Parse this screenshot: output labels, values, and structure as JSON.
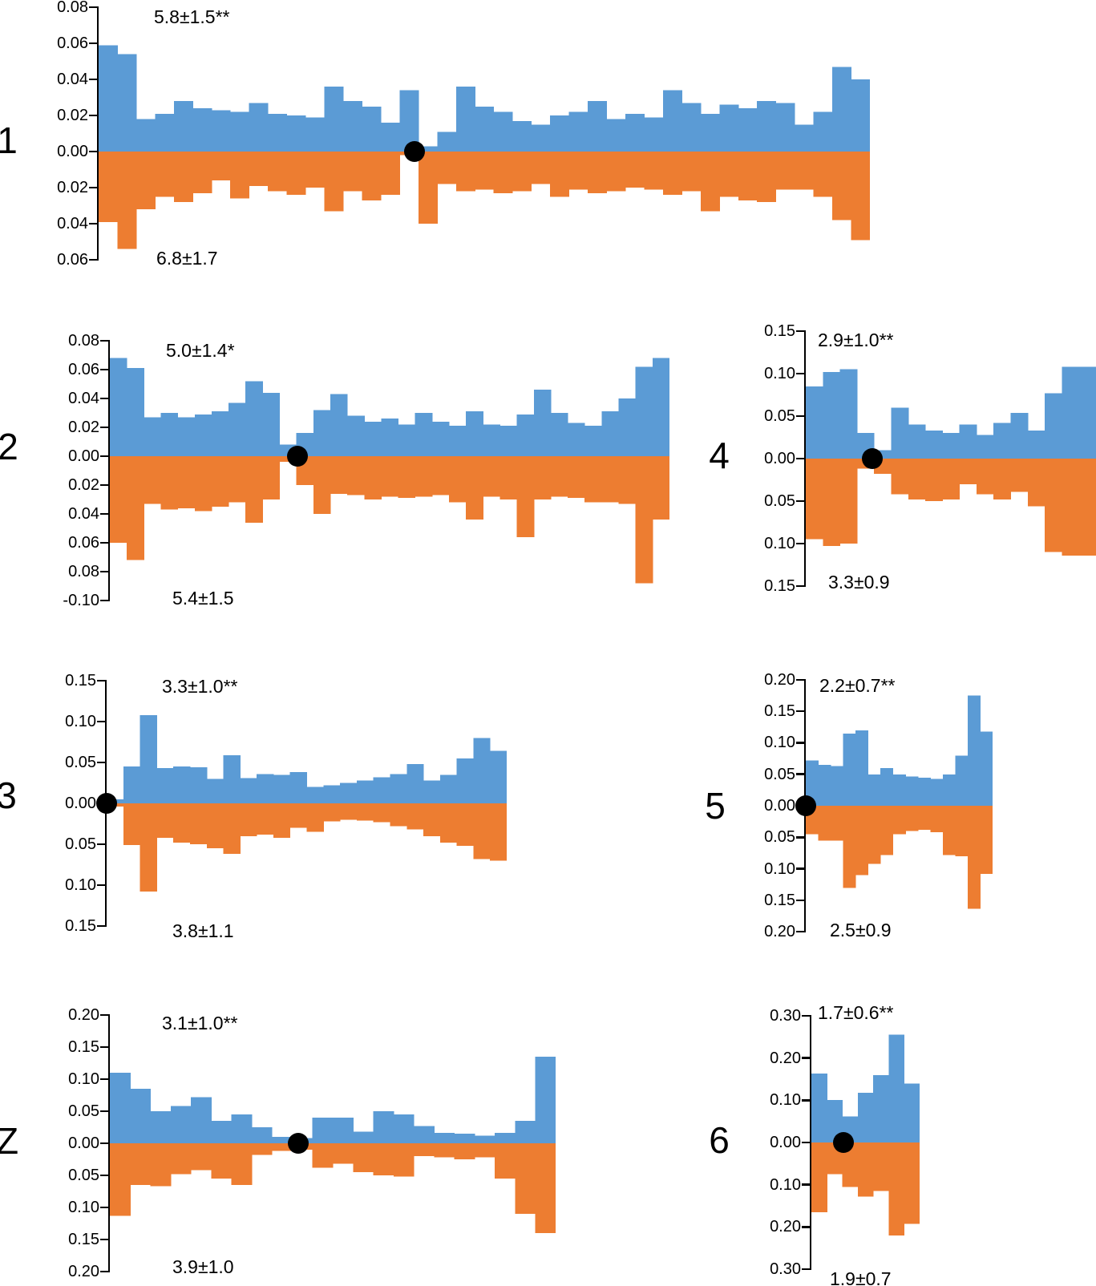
{
  "colors": {
    "up": "#5B9BD5",
    "down": "#ED7D31",
    "dot": "#000000",
    "axis": "#000000"
  },
  "chart_data": [
    {
      "id": "1",
      "type": "bar",
      "subtype": "mirrored-histogram",
      "row_label": "1",
      "anno_top": "5.8±1.5**",
      "anno_bottom": "6.8±1.7",
      "ylim": [
        -0.06,
        0.08
      ],
      "grid": false,
      "legend": false,
      "y_ticks": [
        {
          "v": 0.08,
          "label": "0.08"
        },
        {
          "v": 0.06,
          "label": "0.06"
        },
        {
          "v": 0.04,
          "label": "0.04"
        },
        {
          "v": 0.02,
          "label": "0.02"
        },
        {
          "v": 0.0,
          "label": "0.00"
        },
        {
          "v": -0.02,
          "label": "0.02"
        },
        {
          "v": -0.04,
          "label": "0.04"
        },
        {
          "v": -0.06,
          "label": "0.06"
        }
      ],
      "dot_frac": 0.41,
      "up": [
        0.059,
        0.054,
        0.018,
        0.021,
        0.028,
        0.024,
        0.023,
        0.022,
        0.027,
        0.021,
        0.02,
        0.019,
        0.036,
        0.028,
        0.025,
        0.016,
        0.034,
        0.003,
        0.011,
        0.036,
        0.025,
        0.022,
        0.017,
        0.015,
        0.02,
        0.022,
        0.028,
        0.018,
        0.021,
        0.019,
        0.034,
        0.027,
        0.021,
        0.026,
        0.024,
        0.028,
        0.027,
        0.015,
        0.022,
        0.047,
        0.04
      ],
      "down": [
        0.039,
        0.054,
        0.032,
        0.025,
        0.028,
        0.023,
        0.016,
        0.026,
        0.019,
        0.022,
        0.024,
        0.02,
        0.033,
        0.022,
        0.027,
        0.024,
        0.002,
        0.04,
        0.018,
        0.022,
        0.021,
        0.023,
        0.022,
        0.018,
        0.025,
        0.021,
        0.023,
        0.022,
        0.02,
        0.021,
        0.024,
        0.022,
        0.033,
        0.025,
        0.027,
        0.028,
        0.021,
        0.021,
        0.025,
        0.038,
        0.049
      ]
    },
    {
      "id": "2",
      "type": "bar",
      "subtype": "mirrored-histogram",
      "row_label": "2",
      "anno_top": "5.0±1.4*",
      "anno_bottom": "5.4±1.5",
      "ylim": [
        -0.1,
        0.08
      ],
      "grid": false,
      "legend": false,
      "y_ticks": [
        {
          "v": 0.08,
          "label": "0.08"
        },
        {
          "v": 0.06,
          "label": "0.06"
        },
        {
          "v": 0.04,
          "label": "0.04"
        },
        {
          "v": 0.02,
          "label": "0.02"
        },
        {
          "v": 0.0,
          "label": "0.00"
        },
        {
          "v": -0.02,
          "label": "0.02"
        },
        {
          "v": -0.04,
          "label": "0.04"
        },
        {
          "v": -0.06,
          "label": "0.06"
        },
        {
          "v": -0.08,
          "label": "0.08"
        },
        {
          "v": -0.1,
          "label": "-0.10"
        }
      ],
      "dot_frac": 0.335,
      "up": [
        0.068,
        0.061,
        0.027,
        0.03,
        0.027,
        0.029,
        0.031,
        0.037,
        0.052,
        0.044,
        0.008,
        0.016,
        0.032,
        0.043,
        0.028,
        0.024,
        0.026,
        0.022,
        0.03,
        0.024,
        0.021,
        0.031,
        0.022,
        0.021,
        0.029,
        0.046,
        0.03,
        0.023,
        0.021,
        0.031,
        0.04,
        0.062,
        0.068
      ],
      "down": [
        0.06,
        0.072,
        0.033,
        0.037,
        0.036,
        0.038,
        0.035,
        0.032,
        0.046,
        0.03,
        0.004,
        0.02,
        0.04,
        0.026,
        0.027,
        0.03,
        0.028,
        0.029,
        0.028,
        0.027,
        0.032,
        0.044,
        0.028,
        0.03,
        0.056,
        0.03,
        0.028,
        0.029,
        0.032,
        0.032,
        0.033,
        0.088,
        0.044
      ]
    },
    {
      "id": "3",
      "type": "bar",
      "subtype": "mirrored-histogram",
      "row_label": "3",
      "anno_top": "3.3±1.0**",
      "anno_bottom": "3.8±1.1",
      "ylim": [
        -0.15,
        0.15
      ],
      "grid": false,
      "legend": false,
      "y_ticks": [
        {
          "v": 0.15,
          "label": "0.15"
        },
        {
          "v": 0.1,
          "label": "0.10"
        },
        {
          "v": 0.05,
          "label": "0.05"
        },
        {
          "v": 0.0,
          "label": "0.00"
        },
        {
          "v": -0.05,
          "label": "0.05"
        },
        {
          "v": -0.1,
          "label": "0.10"
        },
        {
          "v": -0.15,
          "label": "0.15"
        }
      ],
      "dot_frac": 0,
      "up": [
        0.005,
        0.045,
        0.108,
        0.043,
        0.045,
        0.044,
        0.03,
        0.059,
        0.031,
        0.036,
        0.035,
        0.038,
        0.02,
        0.022,
        0.025,
        0.028,
        0.032,
        0.036,
        0.048,
        0.028,
        0.035,
        0.055,
        0.08,
        0.064
      ],
      "down": [
        0.004,
        0.051,
        0.108,
        0.042,
        0.048,
        0.05,
        0.055,
        0.062,
        0.04,
        0.038,
        0.042,
        0.03,
        0.035,
        0.022,
        0.02,
        0.021,
        0.023,
        0.028,
        0.032,
        0.04,
        0.048,
        0.052,
        0.068,
        0.07
      ]
    },
    {
      "id": "Z",
      "type": "bar",
      "subtype": "mirrored-histogram",
      "row_label": "Z",
      "anno_top": "3.1±1.0**",
      "anno_bottom": "3.9±1.0",
      "ylim": [
        -0.2,
        0.2
      ],
      "grid": false,
      "legend": false,
      "y_ticks": [
        {
          "v": 0.2,
          "label": "0.20"
        },
        {
          "v": 0.15,
          "label": "0.15"
        },
        {
          "v": 0.1,
          "label": "0.10"
        },
        {
          "v": 0.05,
          "label": "0.05"
        },
        {
          "v": 0.0,
          "label": "0.00"
        },
        {
          "v": -0.05,
          "label": "0.05"
        },
        {
          "v": -0.1,
          "label": "0.10"
        },
        {
          "v": -0.15,
          "label": "0.15"
        },
        {
          "v": -0.2,
          "label": "0.20"
        }
      ],
      "dot_frac": 0.423,
      "up": [
        0.11,
        0.085,
        0.05,
        0.058,
        0.072,
        0.035,
        0.045,
        0.025,
        0.01,
        0.008,
        0.04,
        0.04,
        0.018,
        0.05,
        0.045,
        0.027,
        0.016,
        0.015,
        0.012,
        0.016,
        0.035,
        0.135
      ],
      "down": [
        0.113,
        0.065,
        0.067,
        0.048,
        0.042,
        0.055,
        0.065,
        0.018,
        0.012,
        0.01,
        0.038,
        0.032,
        0.045,
        0.05,
        0.052,
        0.02,
        0.022,
        0.025,
        0.022,
        0.055,
        0.11,
        0.14
      ]
    },
    {
      "id": "4",
      "type": "bar",
      "subtype": "mirrored-histogram",
      "row_label": "4",
      "anno_top": "2.9±1.0**",
      "anno_bottom": "3.3±0.9",
      "ylim": [
        -0.15,
        0.15
      ],
      "grid": false,
      "legend": false,
      "y_ticks": [
        {
          "v": 0.15,
          "label": "0.15"
        },
        {
          "v": 0.1,
          "label": "0.10"
        },
        {
          "v": 0.05,
          "label": "0.05"
        },
        {
          "v": 0.0,
          "label": "0.00"
        },
        {
          "v": -0.05,
          "label": "0.05"
        },
        {
          "v": -0.1,
          "label": "0.10"
        },
        {
          "v": -0.15,
          "label": "0.15"
        }
      ],
      "dot_frac": 0.23,
      "up": [
        0.085,
        0.102,
        0.105,
        0.03,
        0.01,
        0.06,
        0.04,
        0.033,
        0.03,
        0.04,
        0.028,
        0.042,
        0.054,
        0.033,
        0.077,
        0.108,
        0.108
      ],
      "down": [
        0.095,
        0.103,
        0.1,
        0.012,
        0.018,
        0.042,
        0.048,
        0.05,
        0.048,
        0.03,
        0.042,
        0.048,
        0.039,
        0.056,
        0.11,
        0.114,
        0.114
      ]
    },
    {
      "id": "5",
      "type": "bar",
      "subtype": "mirrored-histogram",
      "row_label": "5",
      "anno_top": "2.2±0.7**",
      "anno_bottom": "2.5±0.9",
      "ylim": [
        -0.2,
        0.2
      ],
      "grid": false,
      "legend": false,
      "y_ticks": [
        {
          "v": 0.2,
          "label": "0.20"
        },
        {
          "v": 0.15,
          "label": "0.15"
        },
        {
          "v": 0.1,
          "label": "0.10"
        },
        {
          "v": 0.05,
          "label": "0.05"
        },
        {
          "v": 0.0,
          "label": "0.00"
        },
        {
          "v": -0.05,
          "label": "0.05"
        },
        {
          "v": -0.1,
          "label": "0.10"
        },
        {
          "v": -0.15,
          "label": "0.15"
        },
        {
          "v": -0.2,
          "label": "0.20"
        }
      ],
      "dot_frac": 0,
      "up": [
        0.072,
        0.065,
        0.063,
        0.115,
        0.12,
        0.05,
        0.06,
        0.05,
        0.047,
        0.045,
        0.043,
        0.05,
        0.08,
        0.175,
        0.118
      ],
      "down": [
        0.045,
        0.055,
        0.055,
        0.13,
        0.11,
        0.092,
        0.078,
        0.045,
        0.04,
        0.038,
        0.042,
        0.078,
        0.08,
        0.163,
        0.108
      ]
    },
    {
      "id": "6",
      "type": "bar",
      "subtype": "mirrored-histogram",
      "row_label": "6",
      "anno_top": "1.7±0.6**",
      "anno_bottom": "1.9±0.7",
      "ylim": [
        -0.3,
        0.3
      ],
      "grid": false,
      "legend": false,
      "y_ticks": [
        {
          "v": 0.3,
          "label": "0.30"
        },
        {
          "v": 0.2,
          "label": "0.20"
        },
        {
          "v": 0.1,
          "label": "0.10"
        },
        {
          "v": 0.0,
          "label": "0.00"
        },
        {
          "v": -0.1,
          "label": "0.10"
        },
        {
          "v": -0.2,
          "label": "0.20"
        },
        {
          "v": -0.3,
          "label": "0.30"
        }
      ],
      "dot_frac": 0.296,
      "up": [
        0.163,
        0.101,
        0.062,
        0.118,
        0.16,
        0.255,
        0.14
      ],
      "down": [
        0.165,
        0.075,
        0.105,
        0.128,
        0.115,
        0.22,
        0.192
      ]
    }
  ]
}
